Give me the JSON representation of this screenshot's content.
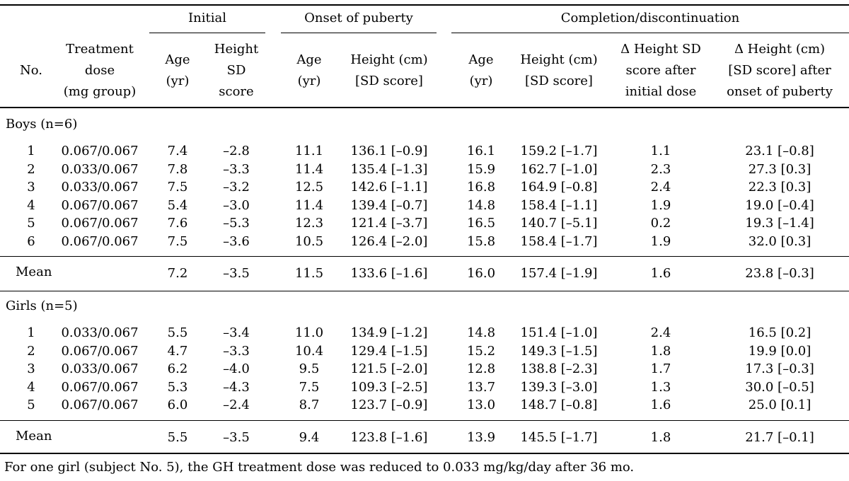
{
  "table": {
    "group_headers": {
      "initial": "Initial",
      "onset": "Onset of puberty",
      "completion": "Completion/discontinuation"
    },
    "column_headers": {
      "no": "No.",
      "dose": [
        "Treatment",
        "dose",
        "(mg group)"
      ],
      "init_age": [
        "Age",
        "(yr)"
      ],
      "init_sd": [
        "Height",
        "SD",
        "score"
      ],
      "onset_age": [
        "Age",
        "(yr)"
      ],
      "onset_height": [
        "Height (cm)",
        "[SD score]"
      ],
      "comp_age": [
        "Age",
        "(yr)"
      ],
      "comp_height": [
        "Height (cm)",
        "[SD score]"
      ],
      "delta_sd": [
        "Δ Height SD",
        "score after",
        "initial dose"
      ],
      "delta_cm": [
        "Δ Height (cm)",
        "[SD score] after",
        "onset of puberty"
      ]
    },
    "sections": [
      {
        "label": "Boys (n=6)",
        "rows": [
          [
            "1",
            "0.067/0.067",
            "7.4",
            "–2.8",
            "11.1",
            "136.1 [–0.9]",
            "16.1",
            "159.2 [–1.7]",
            "1.1",
            "23.1 [–0.8]"
          ],
          [
            "2",
            "0.033/0.067",
            "7.8",
            "–3.3",
            "11.4",
            "135.4 [–1.3]",
            "15.9",
            "162.7 [–1.0]",
            "2.3",
            "27.3 [0.3]"
          ],
          [
            "3",
            "0.033/0.067",
            "7.5",
            "–3.2",
            "12.5",
            "142.6 [–1.1]",
            "16.8",
            "164.9 [–0.8]",
            "2.4",
            "22.3 [0.3]"
          ],
          [
            "4",
            "0.067/0.067",
            "5.4",
            "–3.0",
            "11.4",
            "139.4 [–0.7]",
            "14.8",
            "158.4 [–1.1]",
            "1.9",
            "19.0 [–0.4]"
          ],
          [
            "5",
            "0.067/0.067",
            "7.6",
            "–5.3",
            "12.3",
            "121.4 [–3.7]",
            "16.5",
            "140.7 [–5.1]",
            "0.2",
            "19.3 [–1.4]"
          ],
          [
            "6",
            "0.067/0.067",
            "7.5",
            "–3.6",
            "10.5",
            "126.4 [–2.0]",
            "15.8",
            "158.4 [–1.7]",
            "1.9",
            "32.0 [0.3]"
          ]
        ],
        "mean": [
          "Mean",
          "7.2",
          "–3.5",
          "11.5",
          "133.6 [–1.6]",
          "16.0",
          "157.4 [–1.9]",
          "1.6",
          "23.8 [–0.3]"
        ]
      },
      {
        "label": "Girls (n=5)",
        "rows": [
          [
            "1",
            "0.033/0.067",
            "5.5",
            "–3.4",
            "11.0",
            "134.9 [–1.2]",
            "14.8",
            "151.4 [–1.0]",
            "2.4",
            "16.5 [0.2]"
          ],
          [
            "2",
            "0.067/0.067",
            "4.7",
            "–3.3",
            "10.4",
            "129.4 [–1.5]",
            "15.2",
            "149.3 [–1.5]",
            "1.8",
            "19.9 [0.0]"
          ],
          [
            "3",
            "0.033/0.067",
            "6.2",
            "–4.0",
            "9.5",
            "121.5 [–2.0]",
            "12.8",
            "138.8 [–2.3]",
            "1.7",
            "17.3 [–0.3]"
          ],
          [
            "4",
            "0.067/0.067",
            "5.3",
            "–4.3",
            "7.5",
            "109.3 [–2.5]",
            "13.7",
            "139.3 [–3.0]",
            "1.3",
            "30.0 [–0.5]"
          ],
          [
            "5",
            "0.067/0.067",
            "6.0",
            "–2.4",
            "8.7",
            "123.7 [–0.9]",
            "13.0",
            "148.7 [–0.8]",
            "1.6",
            "25.0 [0.1]"
          ]
        ],
        "mean": [
          "Mean",
          "5.5",
          "–3.5",
          "9.4",
          "123.8 [–1.6]",
          "13.9",
          "145.5 [–1.7]",
          "1.8",
          "21.7 [–0.1]"
        ]
      }
    ]
  },
  "footnote": "For one girl (subject No. 5), the GH treatment dose was reduced to 0.033 mg/kg/day after 36 mo."
}
